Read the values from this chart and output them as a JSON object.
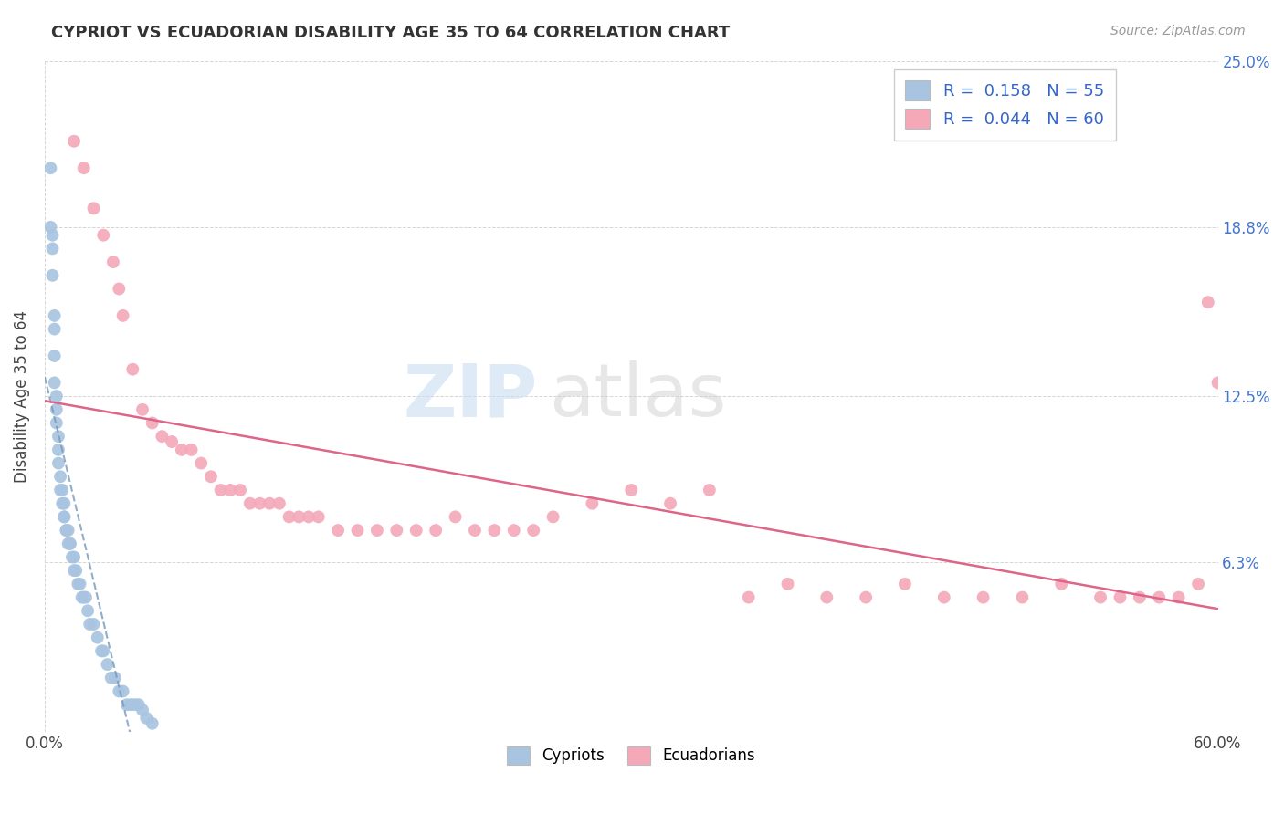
{
  "title": "CYPRIOT VS ECUADORIAN DISABILITY AGE 35 TO 64 CORRELATION CHART",
  "source_text": "Source: ZipAtlas.com",
  "ylabel": "Disability Age 35 to 64",
  "xlim": [
    0.0,
    60.0
  ],
  "ylim": [
    0.0,
    25.0
  ],
  "xtick_positions": [
    0.0,
    60.0
  ],
  "xtick_labels": [
    "0.0%",
    "60.0%"
  ],
  "ytick_vals": [
    0.0,
    6.3,
    12.5,
    18.8,
    25.0
  ],
  "ytick_labels": [
    "",
    "6.3%",
    "12.5%",
    "18.8%",
    "25.0%"
  ],
  "cypriot_R": 0.158,
  "cypriot_N": 55,
  "ecuadorian_R": 0.044,
  "ecuadorian_N": 60,
  "cypriot_color": "#a8c4e0",
  "ecuadorian_color": "#f4a8b8",
  "cypriot_line_color": "#7799bb",
  "ecuadorian_line_color": "#dd6688",
  "background_color": "#ffffff",
  "grid_color": "#cccccc",
  "cypriot_x": [
    0.3,
    0.3,
    0.4,
    0.4,
    0.4,
    0.5,
    0.5,
    0.5,
    0.5,
    0.6,
    0.6,
    0.6,
    0.7,
    0.7,
    0.7,
    0.8,
    0.8,
    0.9,
    0.9,
    1.0,
    1.0,
    1.0,
    1.1,
    1.1,
    1.2,
    1.2,
    1.3,
    1.3,
    1.4,
    1.5,
    1.5,
    1.6,
    1.7,
    1.8,
    1.9,
    2.0,
    2.1,
    2.2,
    2.3,
    2.5,
    2.7,
    2.9,
    3.0,
    3.2,
    3.4,
    3.6,
    3.8,
    4.0,
    4.2,
    4.4,
    4.6,
    4.8,
    5.0,
    5.2,
    5.5
  ],
  "cypriot_y": [
    21.0,
    18.8,
    18.5,
    18.0,
    17.0,
    15.5,
    15.0,
    14.0,
    13.0,
    12.5,
    12.0,
    11.5,
    11.0,
    10.5,
    10.0,
    9.5,
    9.0,
    9.0,
    8.5,
    8.5,
    8.0,
    8.0,
    7.5,
    7.5,
    7.5,
    7.0,
    7.0,
    7.0,
    6.5,
    6.5,
    6.0,
    6.0,
    5.5,
    5.5,
    5.0,
    5.0,
    5.0,
    4.5,
    4.0,
    4.0,
    3.5,
    3.0,
    3.0,
    2.5,
    2.0,
    2.0,
    1.5,
    1.5,
    1.0,
    1.0,
    1.0,
    1.0,
    0.8,
    0.5,
    0.3
  ],
  "ecuadorian_x": [
    1.5,
    2.0,
    2.5,
    3.0,
    3.5,
    3.8,
    4.0,
    4.5,
    5.0,
    5.5,
    6.0,
    6.5,
    7.0,
    7.5,
    8.0,
    8.5,
    9.0,
    9.5,
    10.0,
    10.5,
    11.0,
    11.5,
    12.0,
    12.5,
    13.0,
    13.5,
    14.0,
    15.0,
    16.0,
    17.0,
    18.0,
    19.0,
    20.0,
    21.0,
    22.0,
    23.0,
    24.0,
    25.0,
    26.0,
    28.0,
    30.0,
    32.0,
    34.0,
    36.0,
    38.0,
    40.0,
    42.0,
    44.0,
    46.0,
    48.0,
    50.0,
    52.0,
    54.0,
    55.0,
    56.0,
    57.0,
    58.0,
    59.0,
    59.5,
    60.0
  ],
  "ecuadorian_y": [
    22.0,
    21.0,
    19.5,
    18.5,
    17.5,
    16.5,
    15.5,
    13.5,
    12.0,
    11.5,
    11.0,
    10.8,
    10.5,
    10.5,
    10.0,
    9.5,
    9.0,
    9.0,
    9.0,
    8.5,
    8.5,
    8.5,
    8.5,
    8.0,
    8.0,
    8.0,
    8.0,
    7.5,
    7.5,
    7.5,
    7.5,
    7.5,
    7.5,
    8.0,
    7.5,
    7.5,
    7.5,
    7.5,
    8.0,
    8.5,
    9.0,
    8.5,
    9.0,
    5.0,
    5.5,
    5.0,
    5.0,
    5.5,
    5.0,
    5.0,
    5.0,
    5.5,
    5.0,
    5.0,
    5.0,
    5.0,
    5.0,
    5.5,
    16.0,
    13.0
  ]
}
